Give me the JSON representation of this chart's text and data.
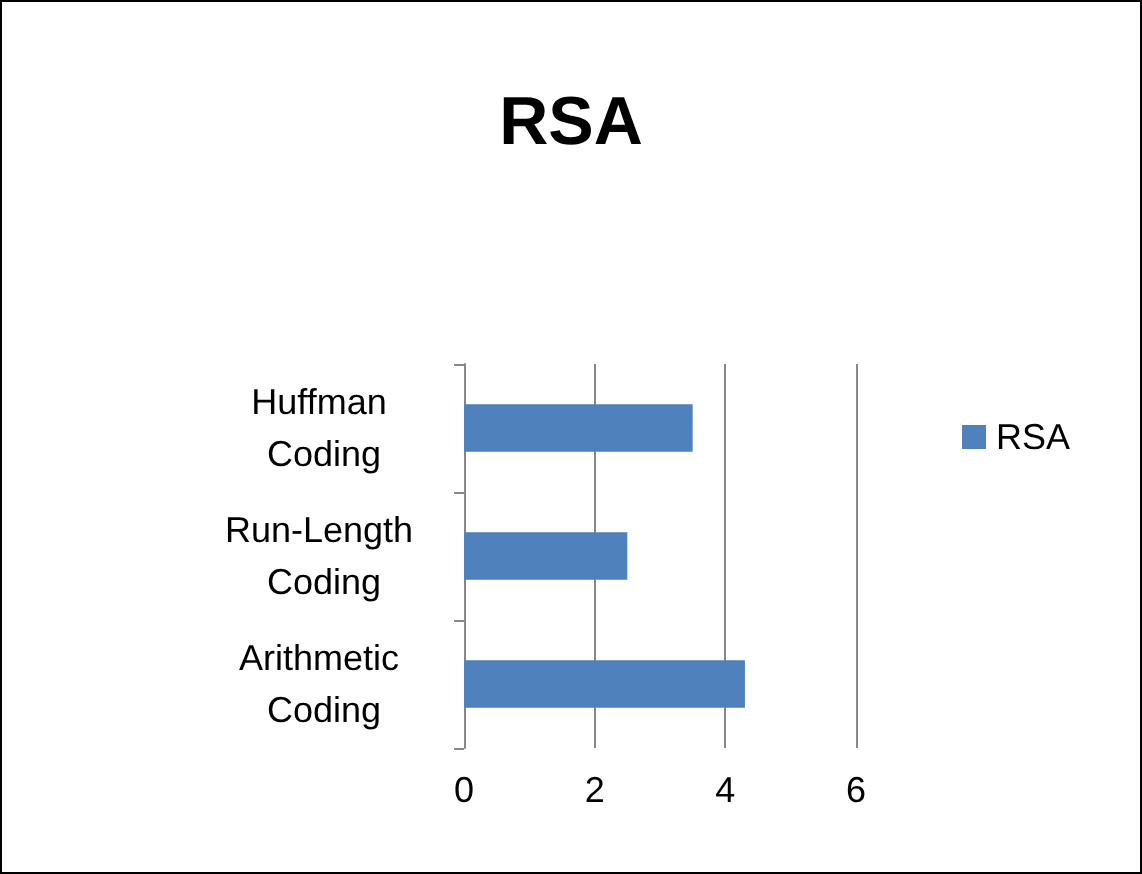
{
  "chart_data": {
    "type": "bar",
    "title": "RSA",
    "orientation": "horizontal",
    "categories": [
      "Huffman Coding",
      "Run-Length Coding",
      "Arithmetic Coding"
    ],
    "series": [
      {
        "name": "RSA",
        "color": "#4f81bd",
        "values": [
          3.5,
          2.5,
          4.3
        ]
      }
    ],
    "xlim": [
      0,
      6
    ],
    "xticks": [
      0,
      2,
      4,
      6
    ],
    "grid": "x",
    "legend": "right"
  }
}
